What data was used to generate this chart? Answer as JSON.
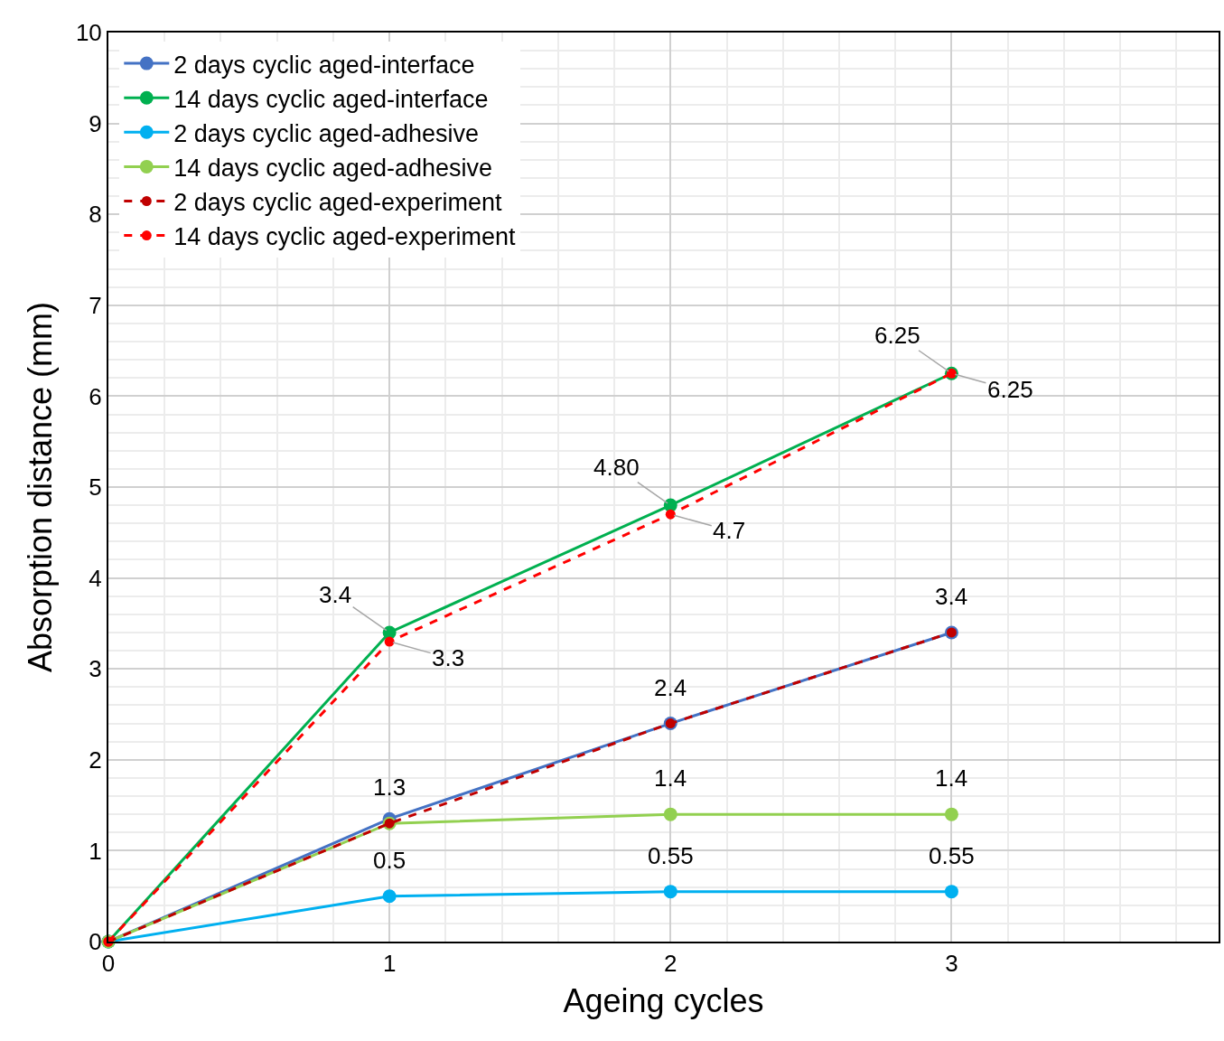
{
  "chart_data": {
    "type": "line",
    "xlabel": "Ageing cycles",
    "ylabel": "Absorption distance (mm)",
    "x": [
      0,
      1,
      2,
      3
    ],
    "xlim": [
      0,
      3.95
    ],
    "xticks": [
      0,
      1,
      2,
      3
    ],
    "ylim": [
      0,
      10
    ],
    "yticks": [
      0,
      1,
      2,
      3,
      4,
      5,
      6,
      7,
      8,
      9,
      10
    ],
    "grid": true,
    "legend": "top left",
    "marker": "circle",
    "series": [
      {
        "name": "2 days cyclic aged-interface",
        "color": "#4472c4",
        "line_style": "solid",
        "values": [
          0,
          1.35,
          2.4,
          3.4
        ],
        "value_labels": [
          null,
          null,
          "2.4",
          "3.4"
        ]
      },
      {
        "name": "14 days cyclic aged-interface",
        "color": "#00b050",
        "line_style": "solid",
        "values": [
          0,
          3.4,
          4.8,
          6.25
        ],
        "value_labels": [
          null,
          "3.4",
          "4.80",
          "6.25"
        ]
      },
      {
        "name": "2 days cyclic aged-adhesive",
        "color": "#00b0f0",
        "line_style": "solid",
        "values": [
          0,
          0.5,
          0.55,
          0.55
        ],
        "value_labels": [
          null,
          "0.5",
          "0.55",
          "0.55"
        ]
      },
      {
        "name": "14 days cyclic aged-adhesive",
        "color": "#92d050",
        "line_style": "solid",
        "values": [
          0,
          1.3,
          1.4,
          1.4
        ],
        "value_labels": [
          null,
          null,
          "1.4",
          "1.4"
        ]
      },
      {
        "name": "2 days cyclic aged-experiment",
        "color": "#c00000",
        "line_style": "dashed",
        "values": [
          0,
          1.3,
          2.4,
          3.4
        ],
        "value_labels": [
          null,
          "1.3",
          null,
          null
        ]
      },
      {
        "name": "14 days cyclic aged-experiment",
        "color": "#ff0000",
        "line_style": "dashed",
        "values": [
          0,
          3.3,
          4.7,
          6.25
        ],
        "value_labels": [
          null,
          "3.3",
          "4.7",
          "6.25"
        ]
      }
    ]
  }
}
